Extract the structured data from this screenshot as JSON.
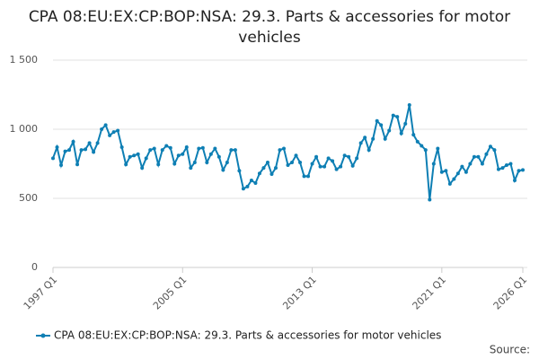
{
  "chart_data": {
    "type": "line",
    "title": "CPA 08:EU:EX:CP:BOP:NSA: 29.3. Parts & accessories for motor vehicles",
    "source": "Source:",
    "categories": [
      "1997 Q1",
      null,
      null,
      null,
      null,
      null,
      null,
      null,
      null,
      null,
      null,
      null,
      null,
      null,
      null,
      null,
      null,
      null,
      null,
      null,
      null,
      null,
      null,
      null,
      null,
      null,
      null,
      null,
      null,
      null,
      null,
      null,
      "2005 Q1",
      null,
      null,
      null,
      null,
      null,
      null,
      null,
      null,
      null,
      null,
      null,
      null,
      null,
      null,
      null,
      null,
      null,
      null,
      null,
      null,
      null,
      null,
      null,
      null,
      null,
      null,
      null,
      null,
      null,
      null,
      null,
      "2013 Q1",
      null,
      null,
      null,
      null,
      null,
      null,
      null,
      null,
      null,
      null,
      null,
      null,
      null,
      null,
      null,
      null,
      null,
      null,
      null,
      null,
      null,
      null,
      null,
      null,
      null,
      null,
      null,
      null,
      null,
      null,
      null,
      "2021 Q1",
      null,
      null,
      null,
      null,
      null,
      null,
      null,
      null,
      null,
      null,
      null,
      null,
      null,
      null,
      null,
      null,
      null,
      null,
      null,
      "2026 Q1"
    ],
    "series": [
      {
        "name": "CPA 08:EU:EX:CP:BOP:NSA: 29.3. Parts & accessories for motor vehicles",
        "color": "#0e7fb4",
        "values": [
          790,
          870,
          740,
          840,
          850,
          910,
          745,
          850,
          855,
          900,
          835,
          900,
          1000,
          1030,
          955,
          980,
          990,
          870,
          745,
          800,
          810,
          820,
          720,
          790,
          850,
          860,
          745,
          850,
          880,
          865,
          750,
          810,
          820,
          870,
          720,
          760,
          860,
          865,
          760,
          820,
          860,
          800,
          705,
          760,
          850,
          850,
          700,
          570,
          585,
          630,
          610,
          680,
          720,
          760,
          675,
          720,
          850,
          860,
          740,
          760,
          810,
          760,
          660,
          660,
          750,
          800,
          730,
          730,
          790,
          770,
          710,
          730,
          810,
          800,
          735,
          790,
          900,
          940,
          850,
          930,
          1060,
          1030,
          930,
          990,
          1100,
          1090,
          970,
          1040,
          1175,
          960,
          910,
          880,
          850,
          490,
          750,
          860,
          690,
          700,
          605,
          640,
          680,
          730,
          690,
          750,
          800,
          800,
          750,
          820,
          875,
          850,
          710,
          720,
          740,
          750,
          630,
          700,
          705
        ]
      }
    ],
    "ylim": [
      0,
      1500
    ],
    "yticks": [
      0,
      500,
      {
        "value": 1000,
        "label": "1 000"
      },
      {
        "value": 1500,
        "label": "1 500"
      }
    ],
    "grid": true
  }
}
